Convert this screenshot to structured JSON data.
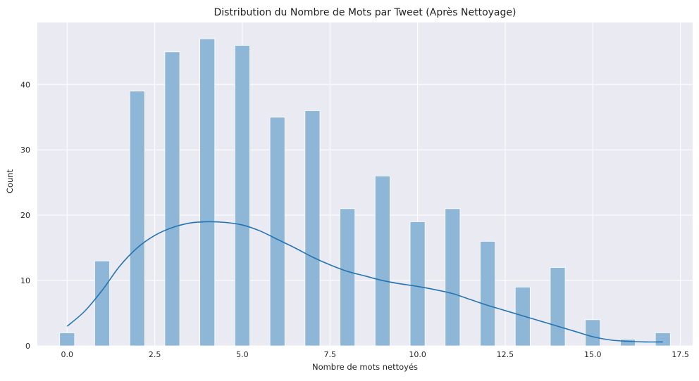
{
  "chart_data": {
    "type": "bar",
    "title": "Distribution du Nombre de Mots par Tweet (Après Nettoyage)",
    "xlabel": "Nombre de mots nettoyés",
    "ylabel": "Count",
    "xlim": [
      -0.85,
      17.85
    ],
    "ylim": [
      0,
      49.5
    ],
    "xticks": [
      0,
      2.5,
      5,
      7.5,
      10,
      12.5,
      15,
      17.5
    ],
    "xtick_labels": [
      "0.0",
      "2.5",
      "5.0",
      "7.5",
      "10.0",
      "12.5",
      "15.0",
      "17.5"
    ],
    "yticks": [
      0,
      10,
      20,
      30,
      40
    ],
    "ytick_labels": [
      "0",
      "10",
      "20",
      "30",
      "40"
    ],
    "grid": true,
    "bin_width": 0.425,
    "bars": [
      {
        "x": 0,
        "count": 2
      },
      {
        "x": 1,
        "count": 13
      },
      {
        "x": 2,
        "count": 39
      },
      {
        "x": 3,
        "count": 45
      },
      {
        "x": 4,
        "count": 47
      },
      {
        "x": 5,
        "count": 46
      },
      {
        "x": 6,
        "count": 35
      },
      {
        "x": 7,
        "count": 36
      },
      {
        "x": 8,
        "count": 21
      },
      {
        "x": 9,
        "count": 26
      },
      {
        "x": 10,
        "count": 19
      },
      {
        "x": 11,
        "count": 21
      },
      {
        "x": 12,
        "count": 16
      },
      {
        "x": 13,
        "count": 9
      },
      {
        "x": 14,
        "count": 12
      },
      {
        "x": 15,
        "count": 4
      },
      {
        "x": 16,
        "count": 1
      },
      {
        "x": 17,
        "count": 2
      }
    ],
    "kde": {
      "x": [
        0,
        0.5,
        1,
        1.5,
        2,
        2.5,
        3,
        3.5,
        4,
        4.5,
        5,
        5.5,
        6,
        6.5,
        7,
        7.5,
        8,
        8.5,
        9,
        9.5,
        10,
        10.5,
        11,
        11.5,
        12,
        12.5,
        13,
        13.5,
        14,
        14.5,
        15,
        15.5,
        16,
        16.5,
        17
      ],
      "y": [
        3.0,
        5.3,
        8.5,
        12.2,
        15.0,
        16.9,
        18.1,
        18.8,
        19.0,
        18.9,
        18.5,
        17.6,
        16.3,
        15.0,
        13.6,
        12.4,
        11.4,
        10.7,
        10.0,
        9.5,
        9.1,
        8.6,
        8.0,
        7.1,
        6.2,
        5.4,
        4.6,
        3.8,
        3.0,
        2.2,
        1.4,
        0.9,
        0.7,
        0.6,
        0.6
      ]
    },
    "colors": {
      "bar_fill": "#8db6d7",
      "bar_stroke": "#ffffff",
      "kde_line": "#2574b2",
      "plot_background": "#eaeaf2",
      "grid": "#ffffff"
    }
  }
}
